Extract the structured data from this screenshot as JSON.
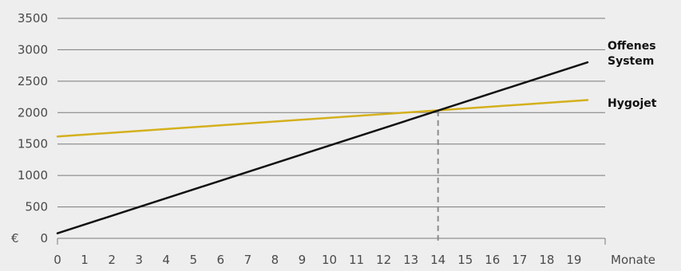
{
  "chart_data": {
    "type": "line",
    "xlabel": "Monate",
    "ylabel": "€",
    "xlim": [
      0,
      20
    ],
    "ylim": [
      0,
      3500
    ],
    "x_ticks": [
      0,
      1,
      2,
      3,
      4,
      5,
      6,
      7,
      8,
      9,
      10,
      11,
      12,
      13,
      14,
      15,
      16,
      17,
      18,
      19
    ],
    "y_ticks": [
      0,
      500,
      1000,
      1500,
      2000,
      2500,
      3000,
      3500
    ],
    "grid": "horizontal",
    "series": [
      {
        "name": "Offenes System",
        "label_lines": [
          "Offenes",
          "System"
        ],
        "color": "#111111",
        "x": [
          0,
          19.5
        ],
        "y": [
          80,
          2800
        ]
      },
      {
        "name": "Hygojet",
        "label_lines": [
          "Hygojet"
        ],
        "color": "#d4b01c",
        "x": [
          0,
          19.5
        ],
        "y": [
          1620,
          2200
        ]
      }
    ],
    "annotations": [
      {
        "type": "vertical-dashed-line",
        "x": 14,
        "y": 2030,
        "color": "#8c8c8c"
      }
    ]
  }
}
